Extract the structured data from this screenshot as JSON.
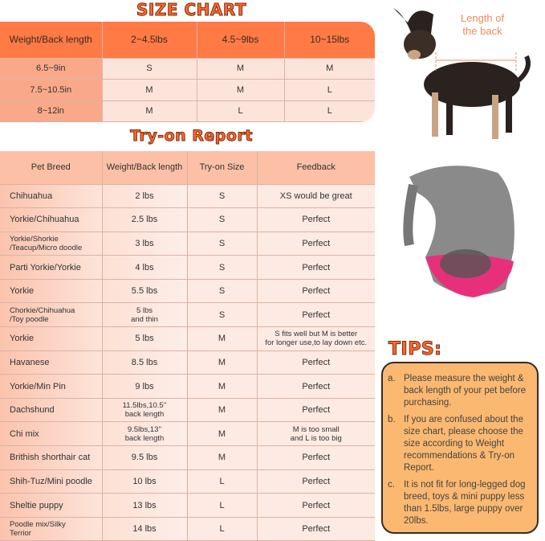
{
  "size_chart": {
    "title": "SIZE CHART",
    "header": [
      "Weight/Back length",
      "2~4.5lbs",
      "4.5~9lbs",
      "10~15lbs"
    ],
    "rows": [
      [
        "6.5~9in",
        "S",
        "M",
        "M"
      ],
      [
        "7.5~10.5in",
        "M",
        "M",
        "L"
      ],
      [
        "8~12in",
        "M",
        "L",
        "L"
      ]
    ]
  },
  "try_on": {
    "title": "Try-on Report",
    "header": [
      "Pet Breed",
      "Weight/Back length",
      "Try-on Size",
      "Feedback"
    ],
    "rows": [
      [
        "Chihuahua",
        "2 lbs",
        "S",
        "XS would be great"
      ],
      [
        "Yorkie/Chihuahua",
        "2.5 lbs",
        "S",
        "Perfect"
      ],
      [
        "Yorkie/Shorkie\n/Teacup/Micro doodle",
        "3 lbs",
        "S",
        "Perfect"
      ],
      [
        "Parti Yorkie/Yorkie",
        "4 lbs",
        "S",
        "Perfect"
      ],
      [
        "Yorkie",
        "5.5 lbs",
        "S",
        "Perfect"
      ],
      [
        "Chorkie/Chihuahua\n/Toy poodle",
        "5 lbs\nand thin",
        "S",
        "Perfect"
      ],
      [
        "Yorkie",
        "5 lbs",
        "M",
        "S fits well but M is better\nfor longer use,to lay down etc."
      ],
      [
        "Havanese",
        "8.5 lbs",
        "M",
        "Perfect"
      ],
      [
        "Yorkie/Min Pin",
        "9 lbs",
        "M",
        "Perfect"
      ],
      [
        "Dachshund",
        "11.5lbs,10.5''\nback length",
        "M",
        "Perfect"
      ],
      [
        "Chi mix",
        "9.5lbs,13''\nback length",
        "M",
        "M is too small\nand L is too big"
      ],
      [
        "Brithish shorthair cat",
        "9.5 lbs",
        "M",
        "Perfect"
      ],
      [
        "Shih-Tuz/Mini poodle",
        "10 lbs",
        "L",
        "Perfect"
      ],
      [
        "Sheltie puppy",
        "13 lbs",
        "L",
        "Perfect"
      ],
      [
        "Poodle mix/Silky\nTerrior",
        "14 lbs",
        "L",
        "Perfect"
      ]
    ]
  },
  "dog_image": {
    "label": "Length of\nthe back"
  },
  "tips": {
    "title": "TIPS:",
    "items": [
      {
        "letter": "a.",
        "text": "Please measure the weight & back length of your pet before purchasing."
      },
      {
        "letter": "b.",
        "text": "If you are confused about the size chart, please choose the size according to Weight recommendations & Try-on Report."
      },
      {
        "letter": "c.",
        "text": "It is not fit for long-legged dog breed, toys & mini puppy less than 1.5lbs, large puppy over 20lbs."
      }
    ]
  },
  "colors": {
    "header": "#ff7a45",
    "accent": "#ff6a2b",
    "tips_bg": "#fbb870",
    "bag_pink": "#e8307a"
  }
}
